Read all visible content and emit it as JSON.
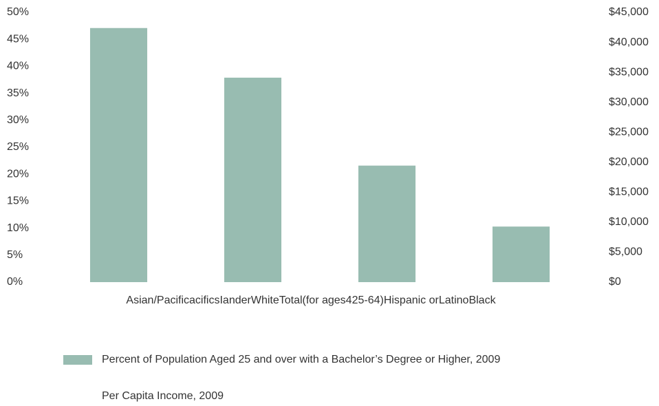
{
  "chart_data": {
    "type": "bar",
    "categories": [
      null,
      null,
      null,
      null
    ],
    "xlabel": "Asian/PacificacificsIanderWhiteTotal(for ages425-64)Hispanic orLatinoBlack",
    "series": [
      {
        "name": "Percent of Population Aged 25 and over with a Bachelor’s Degree or Higher, 2009",
        "color": "#98bcb1",
        "values": [
          47.1,
          37.9,
          21.6,
          10.3
        ]
      },
      {
        "name": "Per Capita Income, 2009",
        "axis": "y2",
        "values": [
          null,
          null,
          null,
          null
        ]
      }
    ],
    "ylim": [
      0,
      50
    ],
    "yticks": [
      {
        "value": 0,
        "label": "0%"
      },
      {
        "value": 5,
        "label": "5%"
      },
      {
        "value": 10,
        "label": "10%"
      },
      {
        "value": 15,
        "label": "15%"
      },
      {
        "value": 20,
        "label": "20%"
      },
      {
        "value": 25,
        "label": "25%"
      },
      {
        "value": 30,
        "label": "30%"
      },
      {
        "value": 35,
        "label": "35%"
      },
      {
        "value": 40,
        "label": "40%"
      },
      {
        "value": 45,
        "label": "45%"
      },
      {
        "value": 50,
        "label": "50%"
      }
    ],
    "y2lim": [
      0,
      45000
    ],
    "y2ticks": [
      {
        "value": 0,
        "label": "$0"
      },
      {
        "value": 5000,
        "label": "$5,000"
      },
      {
        "value": 10000,
        "label": "$10,000"
      },
      {
        "value": 15000,
        "label": "$15,000"
      },
      {
        "value": 20000,
        "label": "$20,000"
      },
      {
        "value": 25000,
        "label": "$25,000"
      },
      {
        "value": 30000,
        "label": "$30,000"
      },
      {
        "value": 35000,
        "label": "$35,000"
      },
      {
        "value": 40000,
        "label": "$40,000"
      },
      {
        "value": 45000,
        "label": "$45,000"
      }
    ],
    "grid": false,
    "legend": "bottom"
  }
}
